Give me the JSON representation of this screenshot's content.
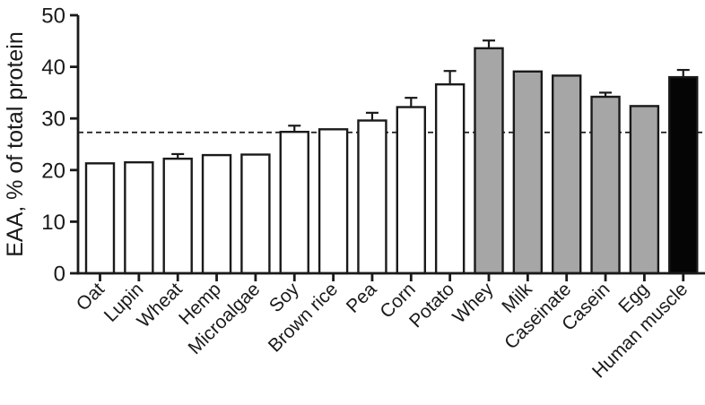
{
  "chart_data": {
    "type": "bar",
    "title": "",
    "xlabel": "",
    "ylabel": "EAA, % of total protein",
    "ylim": [
      0,
      50
    ],
    "yticks": [
      0,
      10,
      20,
      30,
      40,
      50
    ],
    "grid": false,
    "legend": false,
    "reference_line": {
      "value": 27.3,
      "style": "dashed",
      "color": "#1a1a1a",
      "meaning": "horizontal dashed threshold line"
    },
    "categories": [
      "Oat",
      "Lupin",
      "Wheat",
      "Hemp",
      "Microalgae",
      "Soy",
      "Brown rice",
      "Pea",
      "Corn",
      "Potato",
      "Whey",
      "Milk",
      "Caseinate",
      "Casein",
      "Egg",
      "Human muscle"
    ],
    "values": [
      21.3,
      21.5,
      22.2,
      22.9,
      23.0,
      27.4,
      27.9,
      29.6,
      32.2,
      36.6,
      43.6,
      39.1,
      38.3,
      34.2,
      32.4,
      38.0
    ],
    "errors": [
      0,
      0,
      0.9,
      0,
      0,
      1.2,
      0,
      1.5,
      1.8,
      2.6,
      1.5,
      0,
      0,
      0.8,
      0,
      1.4
    ],
    "bar_fills": [
      "#ffffff",
      "#ffffff",
      "#ffffff",
      "#ffffff",
      "#ffffff",
      "#ffffff",
      "#ffffff",
      "#ffffff",
      "#ffffff",
      "#ffffff",
      "#a6a6a6",
      "#a6a6a6",
      "#a6a6a6",
      "#a6a6a6",
      "#a6a6a6",
      "#050505"
    ],
    "bar_border_color": "#1a1a1a",
    "axis_color": "#1a1a1a",
    "error_bar_color": "#1a1a1a",
    "x_labels_rotated_degrees": 45
  }
}
